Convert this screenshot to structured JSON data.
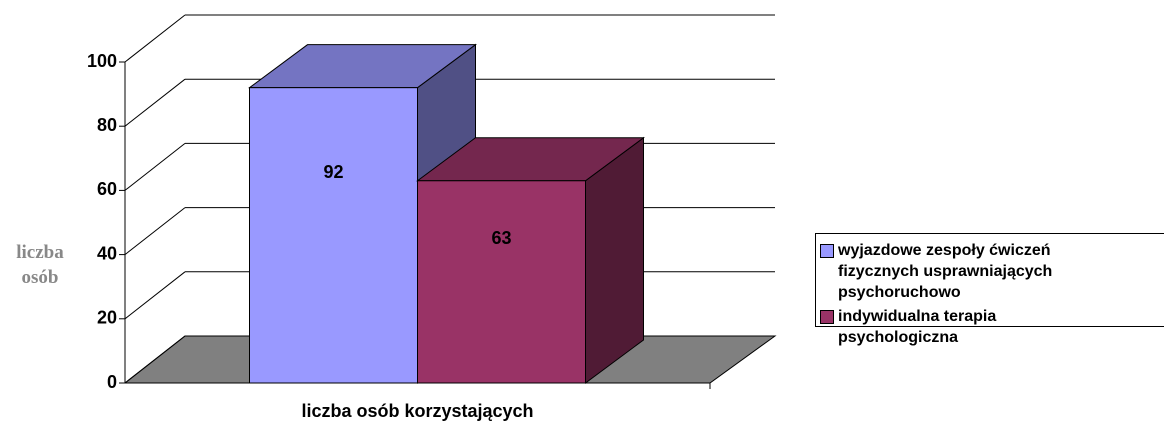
{
  "chart_data": {
    "type": "bar3d",
    "categories": [
      "liczba osób korzystających"
    ],
    "series": [
      {
        "name": "wyjazdowe zespoły ćwiczeń fizycznych usprawniających psychoruchowo",
        "color": "#9999ff",
        "values": [
          92
        ]
      },
      {
        "name": "indywidualna terapia psychologiczna",
        "color": "#993366",
        "values": [
          63
        ]
      }
    ],
    "ylabel": "liczba osób",
    "ylim": [
      0,
      100
    ],
    "yticks": [
      0,
      20,
      40,
      60,
      80,
      100
    ],
    "grid": true,
    "legend": "right"
  }
}
